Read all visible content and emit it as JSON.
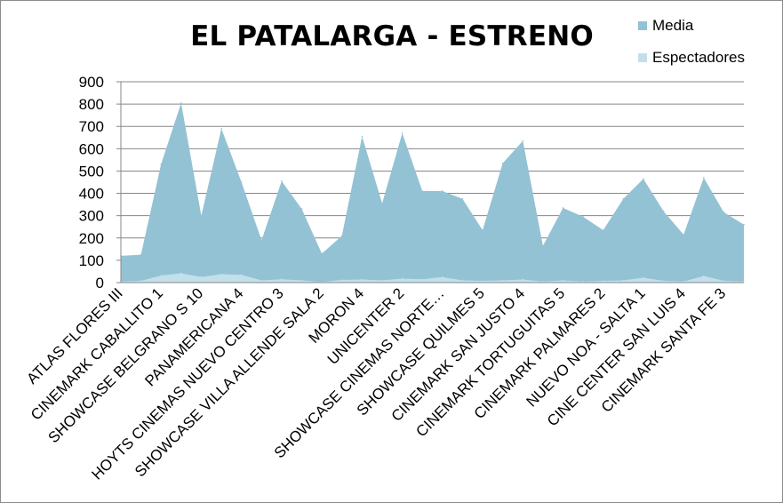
{
  "chart_data": {
    "type": "area",
    "title": "EL PATALARGA - ESTRENO",
    "xlabel": "",
    "ylabel": "",
    "ylim": [
      0,
      900
    ],
    "yticks": [
      0,
      100,
      200,
      300,
      400,
      500,
      600,
      700,
      800,
      900
    ],
    "grid": true,
    "legend_position": "top-right",
    "tick_labels": [
      "ATLAS FLORES   III",
      "CINEMARK CABALLITO 1",
      "SHOWCASE  BELGRANO  S 10",
      "PANAMERICANA 4",
      "HOYTS CINEMAS NUEVO CENTRO 3",
      "SHOWCASE VILLA ALLENDE SALA 2",
      "MORON 4",
      "UNICENTER 2",
      "SHOWCASE CINEMAS  NORTE…",
      "SHOWCASE  QUILMES 5",
      "CINEMARK SAN JUSTO 4",
      "CINEMARK TORTUGUITAS 5",
      "CINEMARK PALMARES 2",
      "NUEVO NOA - SALTA  1",
      "CINE CENTER SAN LUIS 4",
      "CINEMARK SANTA FE 3"
    ],
    "series": [
      {
        "name": "Media",
        "color": "#93c2d4",
        "values": [
          120,
          125,
          530,
          805,
          300,
          690,
          450,
          190,
          455,
          330,
          130,
          210,
          655,
          355,
          670,
          410,
          410,
          375,
          235,
          535,
          635,
          165,
          335,
          295,
          235,
          375,
          465,
          320,
          215,
          470,
          315,
          260
        ]
      },
      {
        "name": "Espectadores",
        "color": "#c2dfea",
        "values": [
          5,
          8,
          32,
          42,
          25,
          38,
          35,
          10,
          15,
          10,
          3,
          12,
          14,
          10,
          18,
          15,
          25,
          10,
          8,
          10,
          14,
          5,
          10,
          5,
          8,
          10,
          22,
          8,
          5,
          30,
          8,
          5
        ]
      }
    ]
  }
}
